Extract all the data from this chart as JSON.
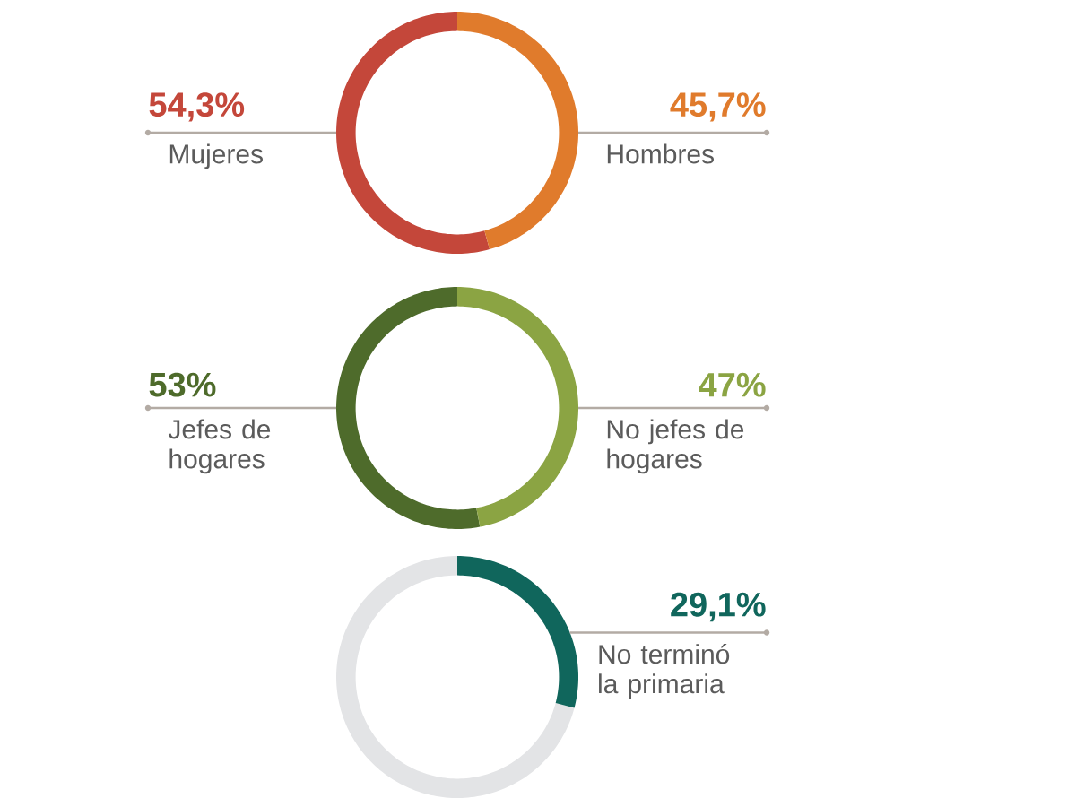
{
  "chart_data": [
    {
      "type": "donut",
      "categories": [
        "Mujeres",
        "Hombres"
      ],
      "values": [
        54.3,
        45.7
      ],
      "colors": [
        "#c4473a",
        "#e07b2c"
      ],
      "value_labels": [
        "54,3%",
        "45,7%"
      ]
    },
    {
      "type": "donut",
      "categories": [
        "Jefes de hogares",
        "No jefes de hogares"
      ],
      "values": [
        53,
        47
      ],
      "colors": [
        "#4e6b2b",
        "#8ba443"
      ],
      "value_labels": [
        "53%",
        "47%"
      ]
    },
    {
      "type": "donut",
      "categories": [
        null,
        "No terminó la primaria"
      ],
      "values": [
        70.9,
        29.1
      ],
      "colors": [
        "#e3e4e6",
        "#10665c"
      ],
      "value_labels": [
        null,
        "29,1%"
      ]
    }
  ]
}
